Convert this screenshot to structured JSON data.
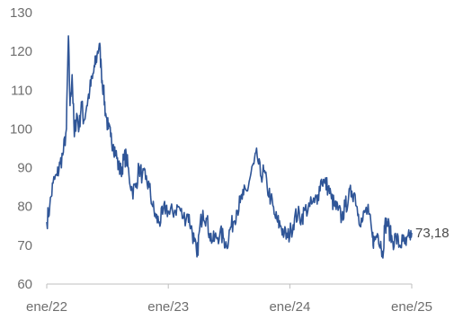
{
  "chart_data": {
    "type": "line",
    "title": "",
    "xlabel": "",
    "ylabel": "",
    "ylim": [
      60,
      130
    ],
    "yticks": [
      "60",
      "70",
      "80",
      "90",
      "100",
      "110",
      "120",
      "130"
    ],
    "xlim": [
      "2022-01-01",
      "2025-01-01"
    ],
    "xticks": [
      {
        "date": "2022-01-01",
        "label": "ene/22"
      },
      {
        "date": "2023-01-01",
        "label": "ene/23"
      },
      {
        "date": "2024-01-01",
        "label": "ene/24"
      },
      {
        "date": "2025-01-01",
        "label": "ene/25"
      }
    ],
    "grid": false,
    "line_color": "#2f5597",
    "end_label": "73,18",
    "series": [
      {
        "points": [
          [
            "2022-01-01",
            76
          ],
          [
            "2022-01-10",
            80
          ],
          [
            "2022-01-20",
            86
          ],
          [
            "2022-02-01",
            88
          ],
          [
            "2022-02-10",
            91
          ],
          [
            "2022-02-20",
            94
          ],
          [
            "2022-03-01",
            100
          ],
          [
            "2022-03-07",
            124
          ],
          [
            "2022-03-12",
            106
          ],
          [
            "2022-03-18",
            114
          ],
          [
            "2022-03-25",
            98
          ],
          [
            "2022-04-01",
            104
          ],
          [
            "2022-04-08",
            100
          ],
          [
            "2022-04-15",
            107
          ],
          [
            "2022-04-22",
            102
          ],
          [
            "2022-05-01",
            106
          ],
          [
            "2022-05-10",
            110
          ],
          [
            "2022-05-18",
            113
          ],
          [
            "2022-05-25",
            116
          ],
          [
            "2022-06-01",
            119
          ],
          [
            "2022-06-08",
            122
          ],
          [
            "2022-06-14",
            115
          ],
          [
            "2022-06-20",
            110
          ],
          [
            "2022-06-27",
            104
          ],
          [
            "2022-07-05",
            100
          ],
          [
            "2022-07-12",
            98
          ],
          [
            "2022-07-20",
            96
          ],
          [
            "2022-07-27",
            94
          ],
          [
            "2022-08-05",
            90
          ],
          [
            "2022-08-12",
            89
          ],
          [
            "2022-08-20",
            92
          ],
          [
            "2022-08-28",
            93
          ],
          [
            "2022-09-05",
            88
          ],
          [
            "2022-09-15",
            84
          ],
          [
            "2022-09-25",
            85
          ],
          [
            "2022-10-05",
            90
          ],
          [
            "2022-10-15",
            88
          ],
          [
            "2022-10-25",
            87
          ],
          [
            "2022-11-05",
            85
          ],
          [
            "2022-11-15",
            80
          ],
          [
            "2022-11-25",
            77
          ],
          [
            "2022-12-05",
            76
          ],
          [
            "2022-12-15",
            78
          ],
          [
            "2022-12-25",
            80
          ],
          [
            "2023-01-05",
            78
          ],
          [
            "2023-01-20",
            79
          ],
          [
            "2023-02-01",
            80
          ],
          [
            "2023-02-15",
            77
          ],
          [
            "2023-03-01",
            78
          ],
          [
            "2023-03-10",
            75
          ],
          [
            "2023-03-20",
            71
          ],
          [
            "2023-03-28",
            67
          ],
          [
            "2023-04-05",
            74
          ],
          [
            "2023-04-15",
            79
          ],
          [
            "2023-04-25",
            77
          ],
          [
            "2023-05-05",
            73
          ],
          [
            "2023-05-15",
            71
          ],
          [
            "2023-05-25",
            72
          ],
          [
            "2023-06-05",
            73
          ],
          [
            "2023-06-15",
            72
          ],
          [
            "2023-06-25",
            70
          ],
          [
            "2023-07-05",
            74
          ],
          [
            "2023-07-15",
            76
          ],
          [
            "2023-07-25",
            79
          ],
          [
            "2023-08-05",
            81
          ],
          [
            "2023-08-15",
            83
          ],
          [
            "2023-08-25",
            84
          ],
          [
            "2023-09-05",
            88
          ],
          [
            "2023-09-15",
            91
          ],
          [
            "2023-09-25",
            93
          ],
          [
            "2023-10-05",
            88
          ],
          [
            "2023-10-15",
            89
          ],
          [
            "2023-10-25",
            85
          ],
          [
            "2023-11-05",
            82
          ],
          [
            "2023-11-15",
            78
          ],
          [
            "2023-11-25",
            76
          ],
          [
            "2023-12-05",
            75
          ],
          [
            "2023-12-15",
            73
          ],
          [
            "2023-12-25",
            72
          ],
          [
            "2024-01-05",
            74
          ],
          [
            "2024-01-15",
            77
          ],
          [
            "2024-01-25",
            78
          ],
          [
            "2024-02-05",
            77
          ],
          [
            "2024-02-15",
            79
          ],
          [
            "2024-03-01",
            80
          ],
          [
            "2024-03-15",
            81
          ],
          [
            "2024-03-25",
            83
          ],
          [
            "2024-04-05",
            87
          ],
          [
            "2024-04-15",
            86
          ],
          [
            "2024-04-25",
            85
          ],
          [
            "2024-05-05",
            82
          ],
          [
            "2024-05-15",
            80
          ],
          [
            "2024-05-25",
            79
          ],
          [
            "2024-06-05",
            77
          ],
          [
            "2024-06-15",
            80
          ],
          [
            "2024-06-25",
            82
          ],
          [
            "2024-07-05",
            84
          ],
          [
            "2024-07-15",
            83
          ],
          [
            "2024-07-25",
            78
          ],
          [
            "2024-08-05",
            76
          ],
          [
            "2024-08-15",
            79
          ],
          [
            "2024-08-25",
            78
          ],
          [
            "2024-09-05",
            72
          ],
          [
            "2024-09-10",
            71
          ],
          [
            "2024-09-20",
            73
          ],
          [
            "2024-09-30",
            71
          ],
          [
            "2024-10-05",
            67
          ],
          [
            "2024-10-12",
            75
          ],
          [
            "2024-10-20",
            76
          ],
          [
            "2024-10-28",
            73
          ],
          [
            "2024-11-05",
            71
          ],
          [
            "2024-11-15",
            72
          ],
          [
            "2024-11-25",
            70
          ],
          [
            "2024-12-05",
            71
          ],
          [
            "2024-12-15",
            70
          ],
          [
            "2024-12-25",
            72
          ],
          [
            "2025-01-01",
            73.18
          ]
        ]
      }
    ]
  }
}
